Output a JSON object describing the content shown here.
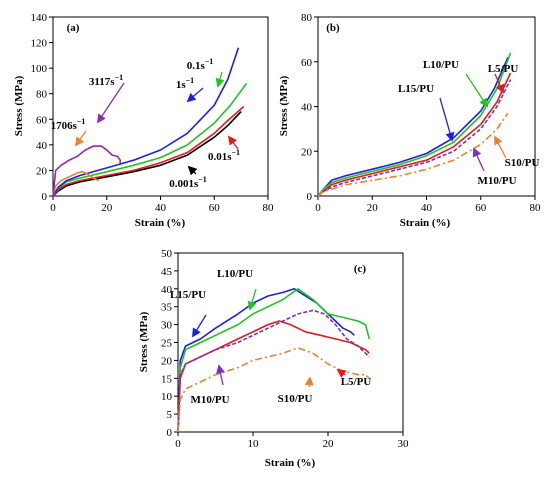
{
  "chart_data": [
    {
      "type": "line",
      "panel_label": "(a)",
      "xlabel": "Strain (%)",
      "ylabel": "Stress (MPa)",
      "xlim": [
        0,
        80
      ],
      "ylim": [
        0,
        140
      ],
      "xticks": [
        "0",
        "20",
        "40",
        "60",
        "80"
      ],
      "yticks": [
        "0",
        "20",
        "40",
        "60",
        "80",
        "100",
        "120",
        "140"
      ],
      "grid": false,
      "legend": "none",
      "series": [
        {
          "name": "0.001s−1",
          "color": "#000000",
          "dash": "solid",
          "points": [
            [
              0,
              0
            ],
            [
              2,
              4
            ],
            [
              5,
              8
            ],
            [
              10,
              11
            ],
            [
              20,
              15
            ],
            [
              30,
              19
            ],
            [
              40,
              24
            ],
            [
              50,
              32
            ],
            [
              60,
              46
            ],
            [
              65,
              55
            ],
            [
              70,
              66
            ]
          ]
        },
        {
          "name": "0.01s−1",
          "color": "#e41a1c",
          "dash": "solid",
          "points": [
            [
              0,
              0
            ],
            [
              2,
              5
            ],
            [
              5,
              9
            ],
            [
              10,
              12
            ],
            [
              20,
              16
            ],
            [
              30,
              20
            ],
            [
              40,
              26
            ],
            [
              50,
              34
            ],
            [
              60,
              49
            ],
            [
              65,
              59
            ],
            [
              71,
              70
            ]
          ]
        },
        {
          "name": "0.1s−1",
          "color": "#1fc41f",
          "dash": "solid",
          "points": [
            [
              0,
              0
            ],
            [
              2,
              6
            ],
            [
              5,
              11
            ],
            [
              10,
              14
            ],
            [
              20,
              19
            ],
            [
              30,
              24
            ],
            [
              40,
              30
            ],
            [
              50,
              40
            ],
            [
              60,
              57
            ],
            [
              66,
              71
            ],
            [
              72,
              88
            ]
          ]
        },
        {
          "name": "1s−1",
          "color": "#1f1fdf",
          "dash": "solid",
          "points": [
            [
              0,
              0
            ],
            [
              2,
              7
            ],
            [
              5,
              12
            ],
            [
              10,
              16
            ],
            [
              20,
              22
            ],
            [
              30,
              28
            ],
            [
              40,
              36
            ],
            [
              50,
              49
            ],
            [
              60,
              71
            ],
            [
              65,
              91
            ],
            [
              69,
              116
            ]
          ]
        },
        {
          "name": "1706s−1",
          "color": "#f08030",
          "dash": "solid",
          "points": [
            [
              0,
              0
            ],
            [
              1,
              8
            ],
            [
              3,
              12
            ],
            [
              6,
              15
            ],
            [
              9,
              18
            ],
            [
              11,
              19
            ],
            [
              13,
              17
            ],
            [
              15,
              14
            ],
            [
              17,
              12
            ]
          ]
        },
        {
          "name": "3117s−1",
          "color": "#8e2bb0",
          "dash": "solid",
          "points": [
            [
              0,
              0
            ],
            [
              1,
              20
            ],
            [
              3,
              24
            ],
            [
              6,
              28
            ],
            [
              9,
              31
            ],
            [
              12,
              36
            ],
            [
              15,
              39
            ],
            [
              18,
              39
            ],
            [
              20,
              36
            ],
            [
              22,
              32
            ],
            [
              24,
              31
            ],
            [
              25,
              28
            ],
            [
              25,
              24
            ]
          ]
        }
      ],
      "annotations": [
        {
          "text": "3117s",
          "superscript": "−1",
          "target": "3117s−1"
        },
        {
          "text": "1706s",
          "superscript": "−1",
          "target": "1706s−1"
        },
        {
          "text": "1s",
          "superscript": "−1",
          "target": "1s−1"
        },
        {
          "text": "0.1s",
          "superscript": "−1",
          "target": "0.1s−1"
        },
        {
          "text": "0.01s",
          "superscript": "−1",
          "target": "0.01s−1"
        },
        {
          "text": "0.001s",
          "superscript": "−1",
          "target": "0.001s−1"
        }
      ]
    },
    {
      "type": "line",
      "panel_label": "(b)",
      "xlabel": "Strain (%)",
      "ylabel": "Stress (MPa)",
      "xlim": [
        0,
        80
      ],
      "ylim": [
        0,
        80
      ],
      "xticks": [
        "0",
        "20",
        "40",
        "60",
        "80"
      ],
      "yticks": [
        "0",
        "20",
        "40",
        "60",
        "80"
      ],
      "grid": false,
      "legend": "none",
      "series": [
        {
          "name": "L15/PU",
          "color": "#1f1fdf",
          "dash": "solid",
          "points": [
            [
              0,
              0
            ],
            [
              2,
              3
            ],
            [
              5,
              7
            ],
            [
              10,
              9
            ],
            [
              20,
              12
            ],
            [
              30,
              15
            ],
            [
              40,
              19
            ],
            [
              50,
              26
            ],
            [
              60,
              38
            ],
            [
              65,
              48
            ],
            [
              70,
              62
            ]
          ]
        },
        {
          "name": "L10/PU",
          "color": "#1fc41f",
          "dash": "solid",
          "points": [
            [
              0,
              0
            ],
            [
              2,
              3
            ],
            [
              5,
              6
            ],
            [
              10,
              8
            ],
            [
              20,
              11
            ],
            [
              30,
              14
            ],
            [
              40,
              18
            ],
            [
              50,
              24
            ],
            [
              60,
              36
            ],
            [
              66,
              48
            ],
            [
              71,
              64
            ]
          ]
        },
        {
          "name": "L5/PU",
          "color": "#e41a1c",
          "dash": "solid",
          "points": [
            [
              0,
              0
            ],
            [
              2,
              2
            ],
            [
              5,
              5
            ],
            [
              10,
              7
            ],
            [
              20,
              10
            ],
            [
              30,
              13
            ],
            [
              40,
              16
            ],
            [
              50,
              22
            ],
            [
              60,
              32
            ],
            [
              66,
              42
            ],
            [
              71,
              55
            ]
          ]
        },
        {
          "name": "M10/PU",
          "color": "#7a30c0",
          "dash": "dash",
          "points": [
            [
              0,
              0
            ],
            [
              2,
              2
            ],
            [
              5,
              4
            ],
            [
              10,
              6
            ],
            [
              20,
              9
            ],
            [
              30,
              12
            ],
            [
              40,
              15
            ],
            [
              50,
              20
            ],
            [
              60,
              30
            ],
            [
              66,
              40
            ],
            [
              71,
              52
            ]
          ]
        },
        {
          "name": "S10/PU",
          "color": "#f08030",
          "dash": "dashdot",
          "points": [
            [
              0,
              0
            ],
            [
              2,
              2
            ],
            [
              5,
              3
            ],
            [
              10,
              5
            ],
            [
              20,
              7
            ],
            [
              30,
              9
            ],
            [
              40,
              12
            ],
            [
              50,
              16
            ],
            [
              60,
              23
            ],
            [
              66,
              30
            ],
            [
              70,
              37
            ]
          ]
        }
      ],
      "annotations": [
        {
          "text": "L5/PU",
          "target": "L5/PU"
        },
        {
          "text": "L10/PU",
          "target": "L10/PU"
        },
        {
          "text": "L15/PU",
          "target": "L15/PU"
        },
        {
          "text": "S10/PU",
          "target": "S10/PU"
        },
        {
          "text": "M10/PU",
          "target": "M10/PU"
        }
      ]
    },
    {
      "type": "line",
      "panel_label": "(c)",
      "xlabel": "Strain (%)",
      "ylabel": "Stress (MPa)",
      "xlim": [
        0,
        30
      ],
      "ylim": [
        0,
        50
      ],
      "xticks": [
        "0",
        "10",
        "20",
        "30"
      ],
      "yticks": [
        "0",
        "5",
        "10",
        "15",
        "20",
        "25",
        "30",
        "35",
        "40",
        "45",
        "50"
      ],
      "grid": false,
      "legend": "none",
      "series": [
        {
          "name": "L15/PU",
          "color": "#1f1fdf",
          "dash": "solid",
          "points": [
            [
              0,
              0
            ],
            [
              0.3,
              20
            ],
            [
              1,
              24
            ],
            [
              3,
              26
            ],
            [
              5,
              29
            ],
            [
              8,
              33
            ],
            [
              10,
              36
            ],
            [
              12,
              38
            ],
            [
              14,
              39
            ],
            [
              15.5,
              40
            ],
            [
              17,
              38
            ],
            [
              18.5,
              36
            ],
            [
              20,
              33
            ],
            [
              21,
              31
            ],
            [
              22,
              29
            ],
            [
              23,
              28
            ],
            [
              23.5,
              27
            ]
          ]
        },
        {
          "name": "L10/PU",
          "color": "#1fc41f",
          "dash": "solid",
          "points": [
            [
              0,
              0
            ],
            [
              0.3,
              18
            ],
            [
              1,
              23
            ],
            [
              3,
              25
            ],
            [
              5,
              27
            ],
            [
              8,
              30
            ],
            [
              10,
              33
            ],
            [
              12,
              35
            ],
            [
              14,
              37
            ],
            [
              16,
              40
            ],
            [
              18,
              37
            ],
            [
              20,
              33
            ],
            [
              22,
              32
            ],
            [
              24,
              31
            ],
            [
              25,
              30
            ],
            [
              25.5,
              26
            ]
          ]
        },
        {
          "name": "L5/PU",
          "color": "#e41a1c",
          "dash": "solid",
          "points": [
            [
              0,
              0
            ],
            [
              0.3,
              15
            ],
            [
              1,
              19
            ],
            [
              3,
              21
            ],
            [
              5,
              23
            ],
            [
              8,
              26
            ],
            [
              10,
              28
            ],
            [
              12,
              30
            ],
            [
              13.5,
              31
            ],
            [
              15,
              30
            ],
            [
              17,
              28
            ],
            [
              19,
              27
            ],
            [
              21,
              26
            ],
            [
              23,
              25
            ],
            [
              24,
              24
            ],
            [
              25,
              23
            ],
            [
              25.5,
              22
            ]
          ]
        },
        {
          "name": "M10/PU",
          "color": "#7a30c0",
          "dash": "dash",
          "points": [
            [
              0,
              0
            ],
            [
              0.3,
              16
            ],
            [
              1,
              19
            ],
            [
              3,
              21
            ],
            [
              5,
              23
            ],
            [
              8,
              25
            ],
            [
              10,
              27
            ],
            [
              12,
              29
            ],
            [
              14,
              31
            ],
            [
              16,
              33
            ],
            [
              18,
              34
            ],
            [
              19.5,
              33
            ],
            [
              21,
              30
            ],
            [
              22.5,
              26
            ],
            [
              24,
              24
            ],
            [
              25,
              22
            ],
            [
              25.5,
              21
            ]
          ]
        },
        {
          "name": "S10/PU",
          "color": "#f08030",
          "dash": "dashdot",
          "points": [
            [
              0,
              0
            ],
            [
              0.3,
              9
            ],
            [
              1,
              12
            ],
            [
              3,
              14
            ],
            [
              5,
              16
            ],
            [
              8,
              18
            ],
            [
              10,
              20
            ],
            [
              12,
              21
            ],
            [
              14,
              22
            ],
            [
              16,
              23.5
            ],
            [
              18,
              22
            ],
            [
              20,
              19
            ],
            [
              22,
              17
            ],
            [
              24,
              16
            ],
            [
              25,
              16
            ],
            [
              25.5,
              15
            ]
          ]
        }
      ],
      "annotations": [
        {
          "text": "L15/PU",
          "target": "L15/PU"
        },
        {
          "text": "L10/PU",
          "target": "L10/PU"
        },
        {
          "text": "(c)",
          "target": "panel"
        },
        {
          "text": "M10/PU",
          "target": "M10/PU"
        },
        {
          "text": "S10/PU",
          "target": "S10/PU"
        },
        {
          "text": "L5/PU",
          "target": "L5/PU"
        }
      ]
    }
  ]
}
